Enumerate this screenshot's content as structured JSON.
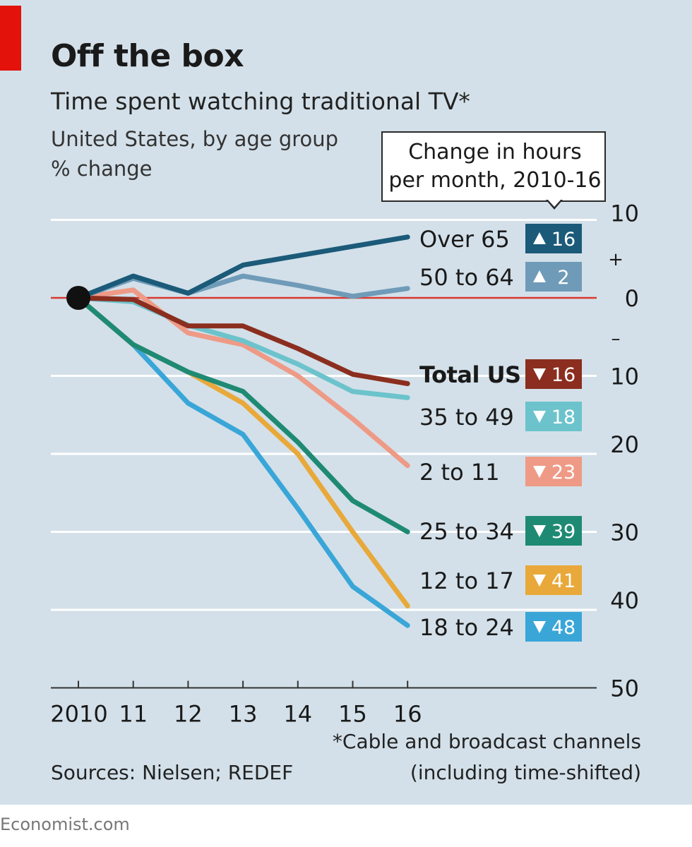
{
  "header": {
    "title": "Off the box",
    "subtitle": "Time spent watching traditional TV*",
    "subtitle2": "United States, by age group",
    "unit": "% change"
  },
  "callout": {
    "line1": "Change in hours",
    "line2": "per month, 2010-16"
  },
  "footer": {
    "source": "Sources: Nielsen; REDEF",
    "footnote_line1": "*Cable and broadcast channels",
    "footnote_line2": "(including time-shifted)",
    "credit": "Economist.com"
  },
  "colors": {
    "background": "#d3e0e9",
    "gridline": "#ffffff",
    "zero_line": "#d9392f",
    "accent": "#e3120b"
  },
  "chart_data": {
    "type": "line",
    "x": [
      2010,
      2011,
      2012,
      2013,
      2014,
      2015,
      2016
    ],
    "x_tick_labels": [
      "2010",
      "11",
      "12",
      "13",
      "14",
      "15",
      "16"
    ],
    "ylim": [
      -50,
      10
    ],
    "y_ticks": [
      10,
      0,
      -10,
      -20,
      -30,
      -40,
      -50
    ],
    "y_tick_labels": [
      "10",
      "0",
      "10",
      "20",
      "30",
      "40",
      "50"
    ],
    "y_sign_labels": {
      "plus": "+",
      "minus": "–"
    },
    "start_marker": {
      "x": 2010,
      "y": 0
    },
    "series": [
      {
        "name": "18 to 24",
        "color": "#3aa6d8",
        "values": [
          0,
          -6,
          -13.5,
          -17.5,
          -27,
          -37,
          -42
        ],
        "change_hours": "48",
        "direction": "down",
        "bold": false
      },
      {
        "name": "12 to 17",
        "color": "#e8a93a",
        "values": [
          0,
          -6,
          -9.5,
          -13.5,
          -20,
          -30,
          -39.5
        ],
        "change_hours": "41",
        "direction": "down",
        "bold": false
      },
      {
        "name": "25 to 34",
        "color": "#1f8a74",
        "values": [
          0,
          -6,
          -9.5,
          -12,
          -18.5,
          -26,
          -30
        ],
        "change_hours": "39",
        "direction": "down",
        "bold": false
      },
      {
        "name": "2 to 11",
        "color": "#ee9a86",
        "values": [
          0,
          1,
          -4.5,
          -6,
          -10,
          -15.5,
          -21.5
        ],
        "change_hours": "23",
        "direction": "down",
        "bold": false
      },
      {
        "name": "35 to 49",
        "color": "#6cc3cc",
        "values": [
          0,
          -0.5,
          -3.5,
          -5.5,
          -8.5,
          -12,
          -12.8
        ],
        "change_hours": "18",
        "direction": "down",
        "bold": false
      },
      {
        "name": "Total US",
        "color": "#8b2e1f",
        "values": [
          0,
          -0.2,
          -3.6,
          -3.6,
          -6.5,
          -9.8,
          -11
        ],
        "change_hours": "16",
        "direction": "down",
        "bold": true
      },
      {
        "name": "50 to 64",
        "color": "#6f9bb8",
        "values": [
          0,
          2.5,
          0.6,
          2.8,
          1.6,
          0.2,
          1.2
        ],
        "change_hours": "2",
        "direction": "up",
        "bold": false
      },
      {
        "name": "Over 65",
        "color": "#1b5a79",
        "values": [
          0,
          2.8,
          0.6,
          4.2,
          5.4,
          6.6,
          7.8
        ],
        "change_hours": "16",
        "direction": "up",
        "bold": false
      }
    ]
  }
}
